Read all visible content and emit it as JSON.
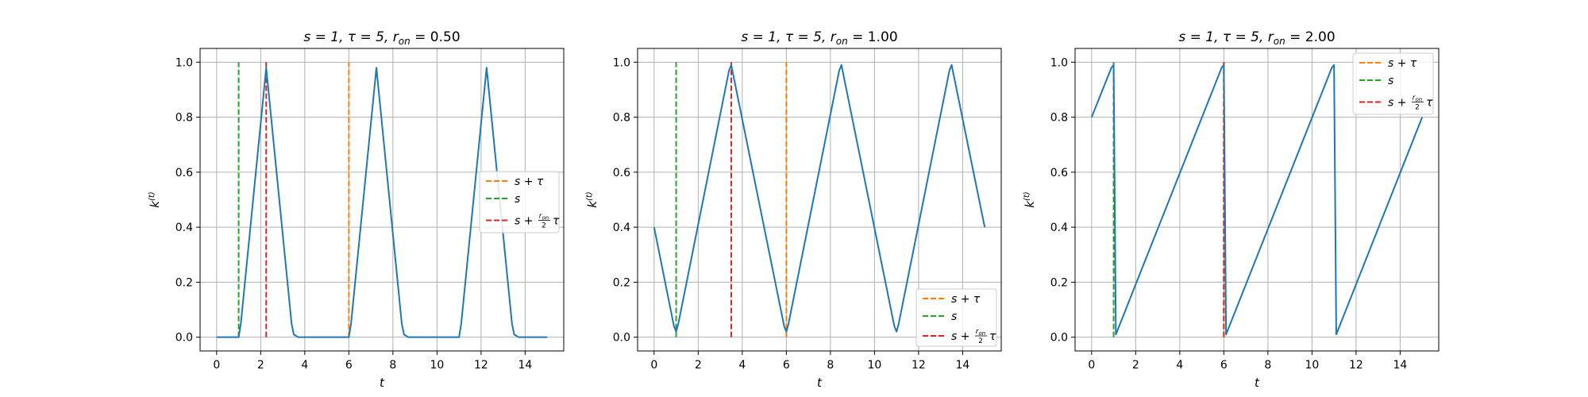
{
  "colors": {
    "series": "#1f77b4",
    "s_plus_tau": "#ff7f0e",
    "s": "#2ca02c",
    "s_plus_ron_tau": "#d62728",
    "grid": "#b0b0b0"
  },
  "chart_data": [
    {
      "type": "line",
      "title": "s = 1, τ = 5, r_on = 0.50",
      "title_parts": {
        "main": "s = 1, τ = 5, r",
        "sub": "on",
        "tail": " = 0.50"
      },
      "xlabel": "t",
      "ylabel": {
        "main": "k",
        "sup": "(t)"
      },
      "xlim": [
        -0.75,
        15.75
      ],
      "ylim": [
        -0.05,
        1.05
      ],
      "xticks": [
        0,
        2,
        4,
        6,
        8,
        10,
        12,
        14
      ],
      "yticks": [
        0.0,
        0.2,
        0.4,
        0.6,
        0.8,
        1.0
      ],
      "ytick_labels": [
        "0.0",
        "0.2",
        "0.4",
        "0.6",
        "0.8",
        "1.0"
      ],
      "grid": true,
      "legend_location": "center right",
      "series": [
        {
          "x": [
            0,
            0.9,
            1.0,
            1.1,
            2.25,
            3.4,
            3.5,
            3.7,
            5.9,
            6.0,
            6.1,
            7.25,
            8.4,
            8.5,
            8.7,
            10.9,
            11.0,
            11.1,
            12.25,
            13.4,
            13.5,
            13.7,
            15.0
          ],
          "y": [
            0,
            0,
            0,
            0.05,
            0.98,
            0.05,
            0.01,
            0,
            0,
            0,
            0.05,
            0.98,
            0.05,
            0.01,
            0,
            0,
            0,
            0.05,
            0.98,
            0.05,
            0.01,
            0,
            0
          ]
        }
      ],
      "vlines": [
        {
          "key": "s_plus_tau",
          "x": 6.0,
          "y0": 0,
          "y1": 1,
          "legend": "s + τ"
        },
        {
          "key": "s",
          "x": 1.0,
          "y0": 0,
          "y1": 1,
          "legend": "s"
        },
        {
          "key": "s_plus_ron_tau",
          "x": 2.25,
          "y0": 0,
          "y1": 1,
          "legend": "s + (r_on/2)τ"
        }
      ]
    },
    {
      "type": "line",
      "title": "s = 1, τ = 5, r_on = 1.00",
      "title_parts": {
        "main": "s = 1, τ = 5, r",
        "sub": "on",
        "tail": " = 1.00"
      },
      "xlabel": "t",
      "ylabel": {
        "main": "k",
        "sup": "(t)"
      },
      "xlim": [
        -0.75,
        15.75
      ],
      "ylim": [
        -0.05,
        1.05
      ],
      "xticks": [
        0,
        2,
        4,
        6,
        8,
        10,
        12,
        14
      ],
      "yticks": [
        0.0,
        0.2,
        0.4,
        0.6,
        0.8,
        1.0
      ],
      "ytick_labels": [
        "0.0",
        "0.2",
        "0.4",
        "0.6",
        "0.8",
        "1.0"
      ],
      "grid": true,
      "legend_location": "lower right",
      "series": [
        {
          "x": [
            0,
            0.9,
            1.0,
            1.1,
            3.4,
            3.5,
            3.6,
            5.9,
            6.0,
            6.1,
            8.4,
            8.5,
            8.6,
            10.9,
            11.0,
            11.1,
            13.4,
            13.5,
            13.6,
            15.0
          ],
          "y": [
            0.4,
            0.04,
            0.02,
            0.05,
            0.97,
            0.99,
            0.95,
            0.04,
            0.02,
            0.05,
            0.97,
            0.99,
            0.95,
            0.04,
            0.02,
            0.05,
            0.97,
            0.99,
            0.95,
            0.4
          ]
        }
      ],
      "vlines": [
        {
          "key": "s_plus_tau",
          "x": 6.0,
          "y0": 0,
          "y1": 1,
          "legend": "s + τ"
        },
        {
          "key": "s",
          "x": 1.0,
          "y0": 0,
          "y1": 1,
          "legend": "s"
        },
        {
          "key": "s_plus_ron_tau",
          "x": 3.5,
          "y0": 0,
          "y1": 1,
          "legend": "s + (r_on/2)τ"
        }
      ]
    },
    {
      "type": "line",
      "title": "s = 1, τ = 5, r_on = 2.00",
      "title_parts": {
        "main": "s = 1, τ = 5, r",
        "sub": "on",
        "tail": " = 2.00"
      },
      "xlabel": "t",
      "ylabel": {
        "main": "k",
        "sup": "(t)"
      },
      "xlim": [
        -0.75,
        15.75
      ],
      "ylim": [
        -0.05,
        1.05
      ],
      "xticks": [
        0,
        2,
        4,
        6,
        8,
        10,
        12,
        14
      ],
      "yticks": [
        0.0,
        0.2,
        0.4,
        0.6,
        0.8,
        1.0
      ],
      "ytick_labels": [
        "0.0",
        "0.2",
        "0.4",
        "0.6",
        "0.8",
        "1.0"
      ],
      "grid": true,
      "legend_location": "upper right",
      "series": [
        {
          "x": [
            0,
            0.9,
            1.0,
            1.1,
            5.9,
            6.0,
            6.1,
            10.9,
            11.0,
            11.1,
            15.0
          ],
          "y": [
            0.8,
            0.98,
            0.99,
            0.01,
            0.98,
            0.99,
            0.01,
            0.98,
            0.99,
            0.01,
            0.8
          ]
        }
      ],
      "vlines": [
        {
          "key": "s_plus_tau",
          "x": 6.0,
          "y0": 0,
          "y1": 1,
          "legend": "s + τ"
        },
        {
          "key": "s",
          "x": 1.0,
          "y0": 0,
          "y1": 1,
          "legend": "s"
        },
        {
          "key": "s_plus_ron_tau",
          "x": 6.0,
          "y0": 0,
          "y1": 1,
          "legend": "s + (r_on/2)τ"
        }
      ]
    }
  ]
}
